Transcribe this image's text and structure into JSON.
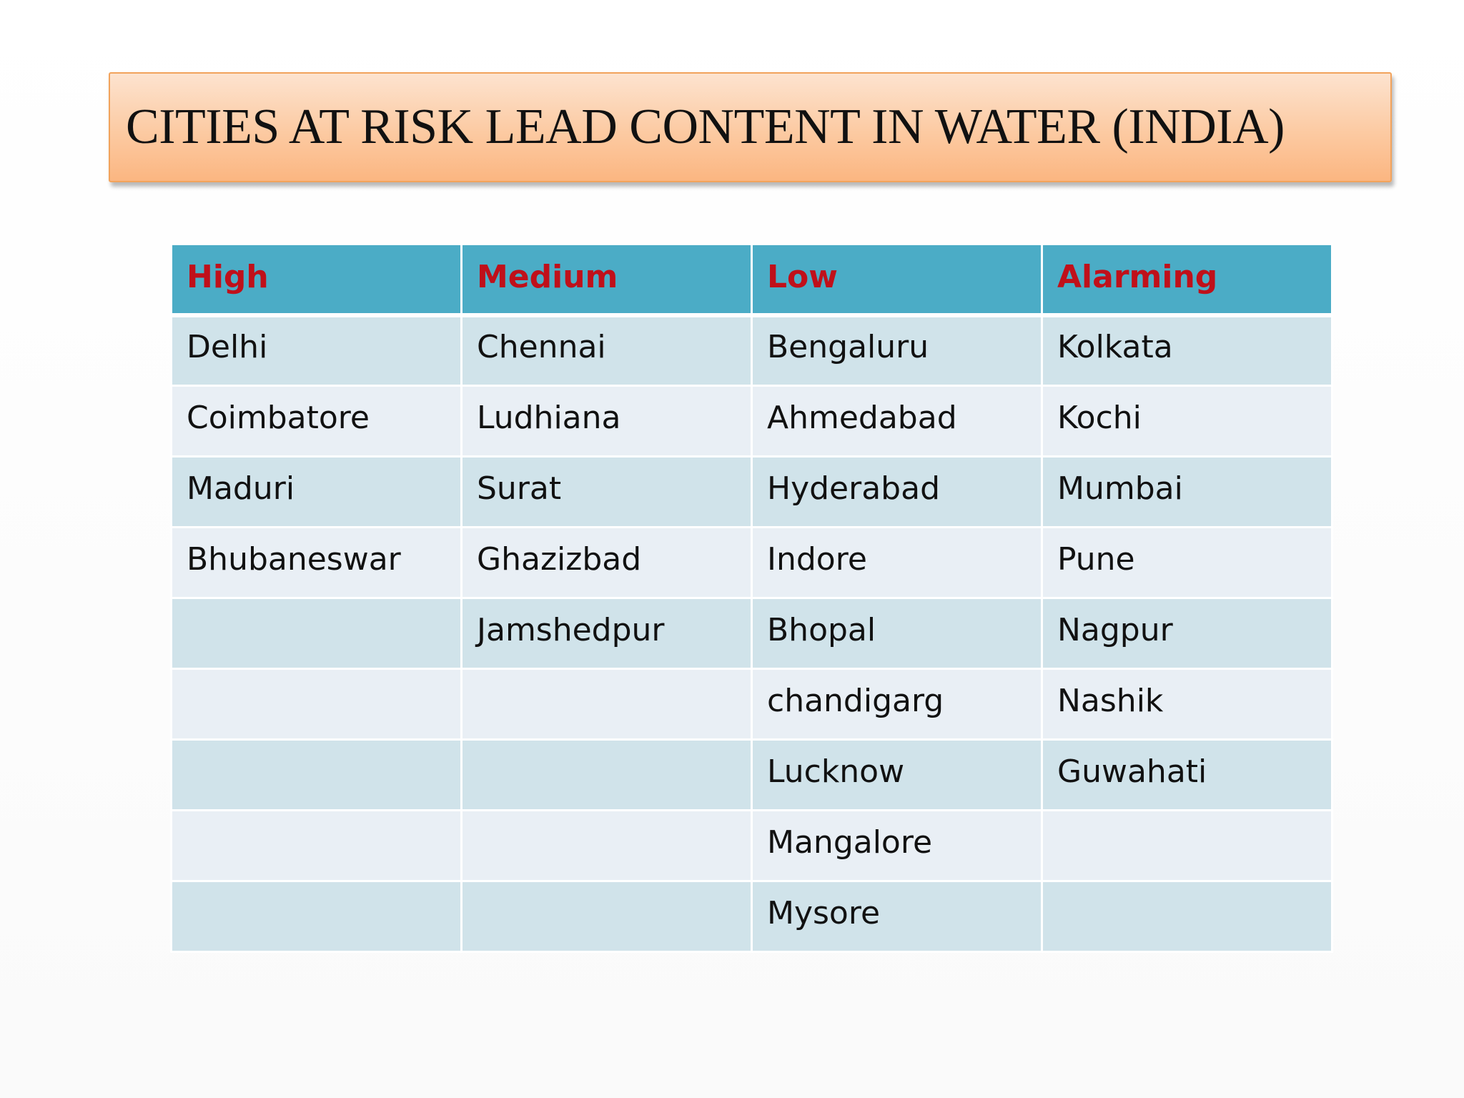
{
  "slide": {
    "title": "CITIES AT RISK LEAD CONTENT IN WATER (INDIA)"
  },
  "table": {
    "headers": [
      "High",
      "Medium",
      "Low",
      "Alarming"
    ],
    "rows": [
      [
        "Delhi",
        "Chennai",
        "Bengaluru",
        "Kolkata"
      ],
      [
        "Coimbatore",
        "Ludhiana",
        "Ahmedabad",
        "Kochi"
      ],
      [
        "Maduri",
        "Surat",
        "Hyderabad",
        "Mumbai"
      ],
      [
        "Bhubaneswar",
        "Ghazizbad",
        "Indore",
        "Pune"
      ],
      [
        "",
        "Jamshedpur",
        "Bhopal",
        "Nagpur"
      ],
      [
        "",
        "",
        "chandigarg",
        "Nashik"
      ],
      [
        "",
        "",
        "Lucknow",
        "Guwahati"
      ],
      [
        "",
        "",
        "Mangalore",
        ""
      ],
      [
        "",
        "",
        "Mysore",
        ""
      ]
    ]
  },
  "colors": {
    "title_fill": "#fccaa2",
    "title_border": "#f2a35c",
    "header_fill": "#4bacc6",
    "header_text": "#c0101a",
    "row_band_dark": "#d0e3ea",
    "row_band_light": "#e9eff5"
  }
}
